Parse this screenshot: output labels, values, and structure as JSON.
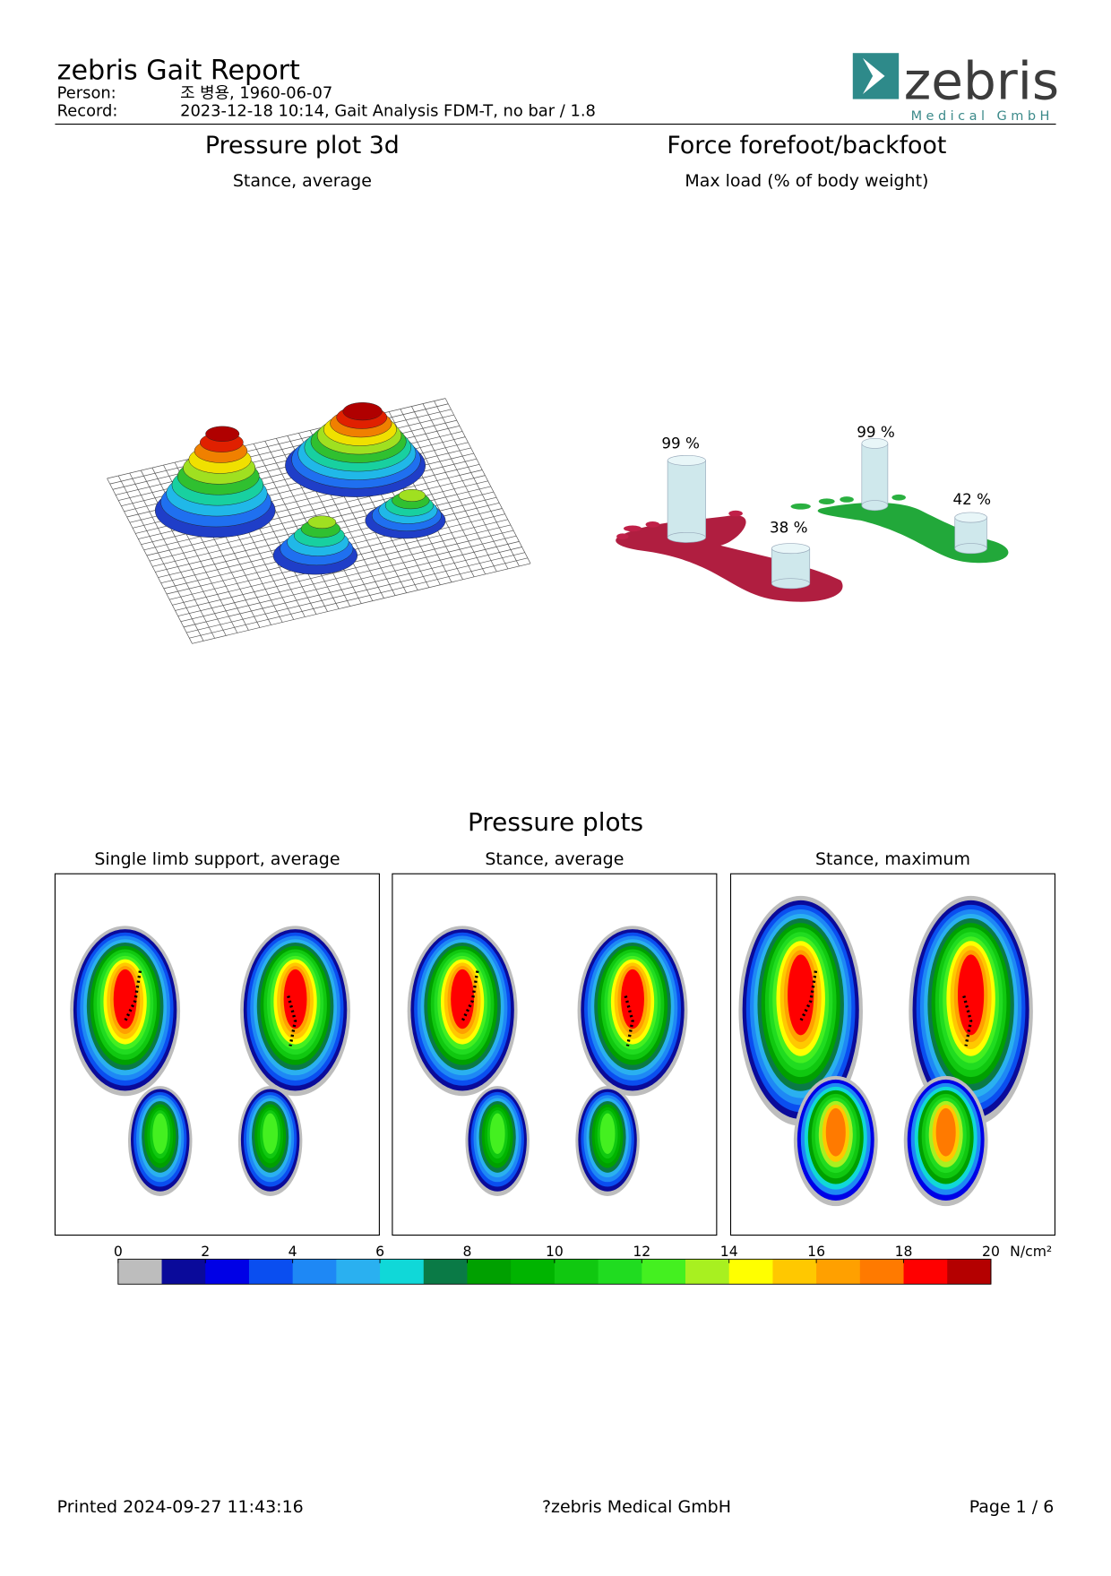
{
  "header": {
    "title": "zebris Gait Report",
    "person_label": "Person:",
    "person": "조 병용, 1960-06-07",
    "record_label": "Record:",
    "record": "2023-12-18 10:14, Gait Analysis FDM-T, no bar / 1.8"
  },
  "logo": {
    "name": "zebris",
    "sub": "Medical GmbH"
  },
  "pressure_3d": {
    "title": "Pressure plot 3d",
    "subtitle": "Stance, average"
  },
  "force": {
    "title": "Force forefoot/backfoot",
    "subtitle": "Max load (% of body weight)",
    "labels": [
      "99 %",
      "38 %",
      "99 %",
      "42 %"
    ]
  },
  "pressure_plots": {
    "title": "Pressure plots",
    "panels": [
      "Single limb support, average",
      "Stance, average",
      "Stance, maximum"
    ],
    "scale": {
      "ticks": [
        0,
        2,
        4,
        6,
        8,
        10,
        12,
        14,
        16,
        18,
        20
      ],
      "unit": "N/cm²",
      "colors": [
        "#bdbdbd",
        "#0a0a9a",
        "#0000e6",
        "#0a4ef0",
        "#1e88f5",
        "#2ab0f0",
        "#10d8d8",
        "#0a7a46",
        "#00a000",
        "#00b400",
        "#10c810",
        "#20dc20",
        "#44f020",
        "#a8f020",
        "#ffff00",
        "#ffc800",
        "#ffa000",
        "#ff7a00",
        "#ff0000",
        "#b40000"
      ]
    }
  },
  "footer": {
    "printed": "Printed  2024-09-27 11:43:16",
    "copyright": "?zebris Medical GmbH",
    "page": "Page  1 / 6"
  }
}
